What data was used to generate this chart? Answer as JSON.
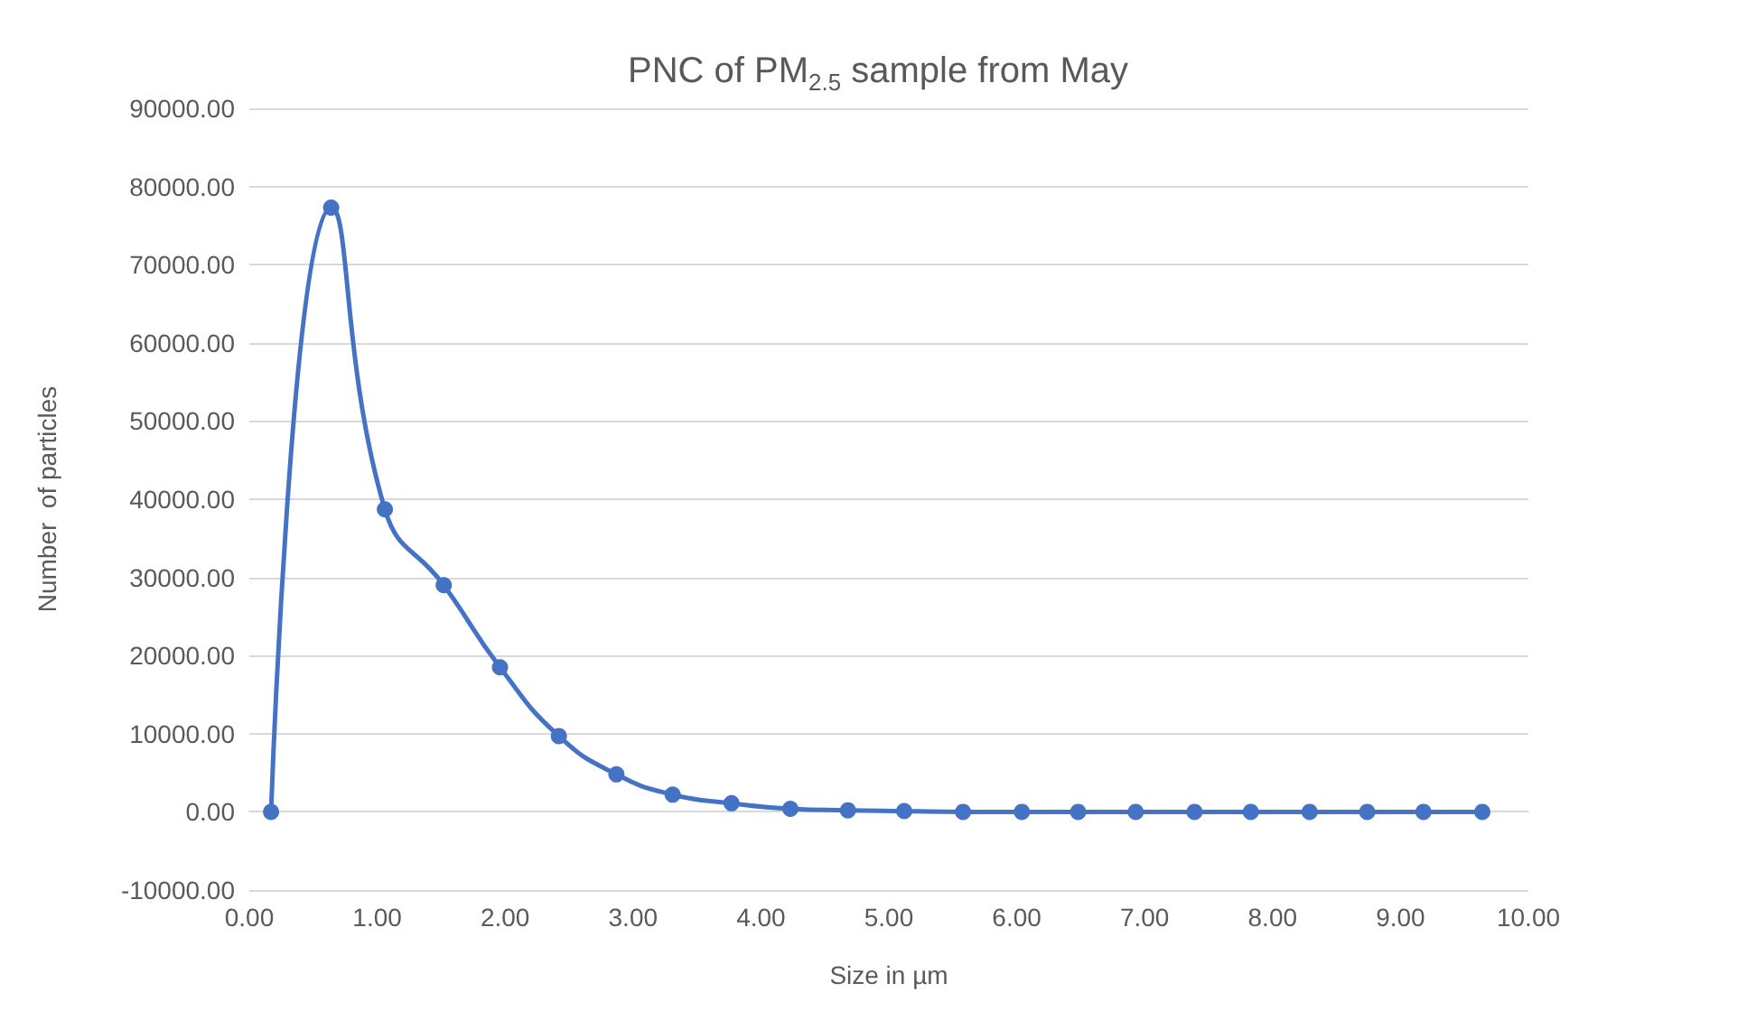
{
  "chart_data": {
    "type": "line",
    "title": "PNC of PM$_{2.5}$ sample from May",
    "xlabel": "Size in µm",
    "ylabel": "Number  of particles",
    "x": [
      0.17,
      0.64,
      1.06,
      1.52,
      1.96,
      2.42,
      2.87,
      3.31,
      3.77,
      4.23,
      4.68,
      5.12,
      5.58,
      6.04,
      6.48,
      6.93,
      7.39,
      7.83,
      8.29,
      8.74,
      9.18,
      9.64
    ],
    "series": [
      {
        "color": "#4472c4",
        "values": [
          0,
          77300,
          38700,
          29000,
          18500,
          9700,
          4800,
          2200,
          1100,
          400,
          200,
          100,
          0,
          0,
          0,
          0,
          0,
          0,
          0,
          0,
          0,
          0
        ]
      }
    ],
    "xlim": [
      0,
      10
    ],
    "xticks": [
      {
        "value": 0,
        "label": "0.00"
      },
      {
        "value": 1,
        "label": "1.00"
      },
      {
        "value": 2,
        "label": "2.00"
      },
      {
        "value": 3,
        "label": "3.00"
      },
      {
        "value": 4,
        "label": "4.00"
      },
      {
        "value": 5,
        "label": "5.00"
      },
      {
        "value": 6,
        "label": "6.00"
      },
      {
        "value": 7,
        "label": "7.00"
      },
      {
        "value": 8,
        "label": "8.00"
      },
      {
        "value": 9,
        "label": "9.00"
      },
      {
        "value": 10,
        "label": "10.00"
      }
    ],
    "ylim": [
      -10000,
      90000
    ],
    "yticks": [
      {
        "value": -10000,
        "label": "-10000.00"
      },
      {
        "value": 0,
        "label": "0.00"
      },
      {
        "value": 10000,
        "label": "10000.00"
      },
      {
        "value": 20000,
        "label": "20000.00"
      },
      {
        "value": 30000,
        "label": "30000.00"
      },
      {
        "value": 40000,
        "label": "40000.00"
      },
      {
        "value": 50000,
        "label": "50000.00"
      },
      {
        "value": 60000,
        "label": "60000.00"
      },
      {
        "value": 70000,
        "label": "70000.00"
      },
      {
        "value": 80000,
        "label": "80000.00"
      },
      {
        "value": 90000,
        "label": "90000.00"
      }
    ],
    "grid": "y",
    "marker": "circle",
    "line_style": "solid"
  }
}
